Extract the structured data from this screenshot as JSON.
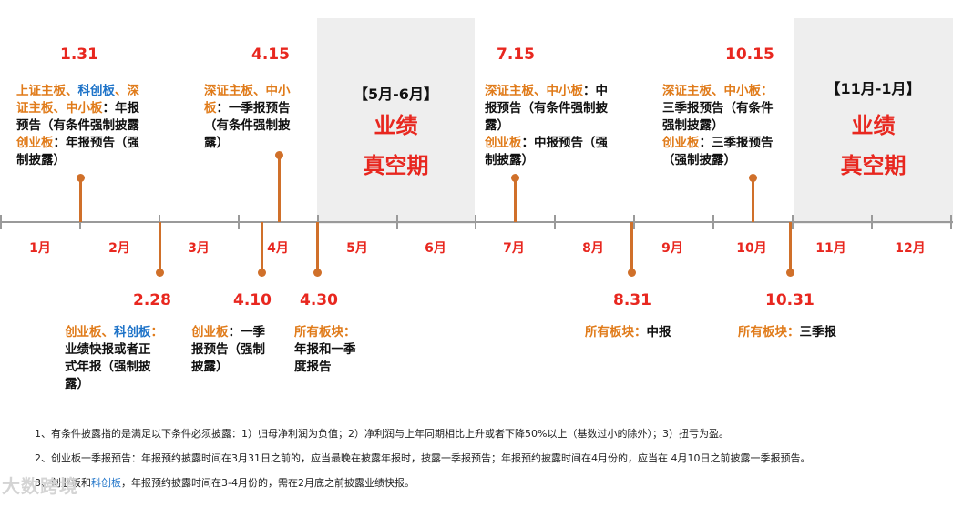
{
  "months": [
    "1月",
    "2月",
    "3月",
    "4月",
    "5月",
    "6月",
    "7月",
    "8月",
    "9月",
    "10月",
    "11月",
    "12月"
  ],
  "vacuum_periods": [
    {
      "range": "【5月-6月】",
      "line1": "业绩",
      "line2": "真空期"
    },
    {
      "range": "【11月-1月】",
      "line1": "业绩",
      "line2": "真空期"
    }
  ],
  "events": {
    "e0131": {
      "date": "1.31",
      "s1": "上证主板",
      "s2": "、",
      "s3": "科创板",
      "s4": "、深",
      "s5": "证主板",
      "s6": "、",
      "s7": "中小板",
      "s8": "：年报",
      "s9": "预告（有条件强制披露",
      "s10": "创业板",
      "s11": "：年报预告（强",
      "s12": "制披露）"
    },
    "e0228": {
      "date": "2.28",
      "s1": "创业板",
      "s2": "、",
      "s3": "科创板",
      "s4": "：",
      "s5": "业绩快报或者正",
      "s6": "式年报（强制披",
      "s7": "露）"
    },
    "e0410": {
      "date": "4.10",
      "s1": "创业板",
      "s2": "：一季",
      "s3": "报预告（强制",
      "s4": "披露）"
    },
    "e0415": {
      "date": "4.15",
      "s1": "深证主板",
      "s2": "、",
      "s3": "中小",
      "s4": "板",
      "s5": "：一季报预告",
      "s6": "（有条件强制披",
      "s7": "露）"
    },
    "e0430": {
      "date": "4.30",
      "s1": "所有板块",
      "s2": "：",
      "s3": "年报和一季",
      "s4": "度报告"
    },
    "e0715": {
      "date": "7.15",
      "s1": "深证主板",
      "s2": "、",
      "s3": "中小板",
      "s4": "：中",
      "s5": "报预告（有条件强制披",
      "s6": "露）",
      "s7": "创业板",
      "s8": "：中报预告（强",
      "s9": "制披露）"
    },
    "e0831": {
      "date": "8.31",
      "s1": "所有板块",
      "s2": "：",
      "s3": "中报"
    },
    "e1015": {
      "date": "10.15",
      "s1": "深证主板",
      "s2": "、",
      "s3": "中小板",
      "s4": "：",
      "s5": "三季报预告（有条件",
      "s6": "强制披露）",
      "s7": "创业板",
      "s8": "：三季报预告",
      "s9": "（强制披露）"
    },
    "e1031": {
      "date": "10.31",
      "s1": "所有板块",
      "s2": "：",
      "s3": "三季报"
    }
  },
  "notes": {
    "n1": "1、有条件披露指的是满足以下条件必须披露：1）归母净利润为负值；2）净利润与上年同期相比上升或者下降50%以上（基数过小的除外）；3）扭亏为盈。",
    "n2": "2、创业板一季报预告：年报预约披露时间在3月31日之前的，应当最晚在披露年报时，披露一季报预告；年报预约披露时间在4月份的，应当在 4月10日之前披露一季报预告。",
    "n3a": "3、创业板和",
    "n3b": "科创板",
    "n3c": "，年报预约披露时间在3-4月份的，需在2月底之前披露业绩快报。"
  },
  "watermark": "大数跨境",
  "colors": {
    "red": "#e8271f",
    "orange": "#e07b1a",
    "blue": "#1e73c8",
    "stem": "#d0702a",
    "shade": "#eeeeee",
    "axis": "#9a9a9a"
  }
}
